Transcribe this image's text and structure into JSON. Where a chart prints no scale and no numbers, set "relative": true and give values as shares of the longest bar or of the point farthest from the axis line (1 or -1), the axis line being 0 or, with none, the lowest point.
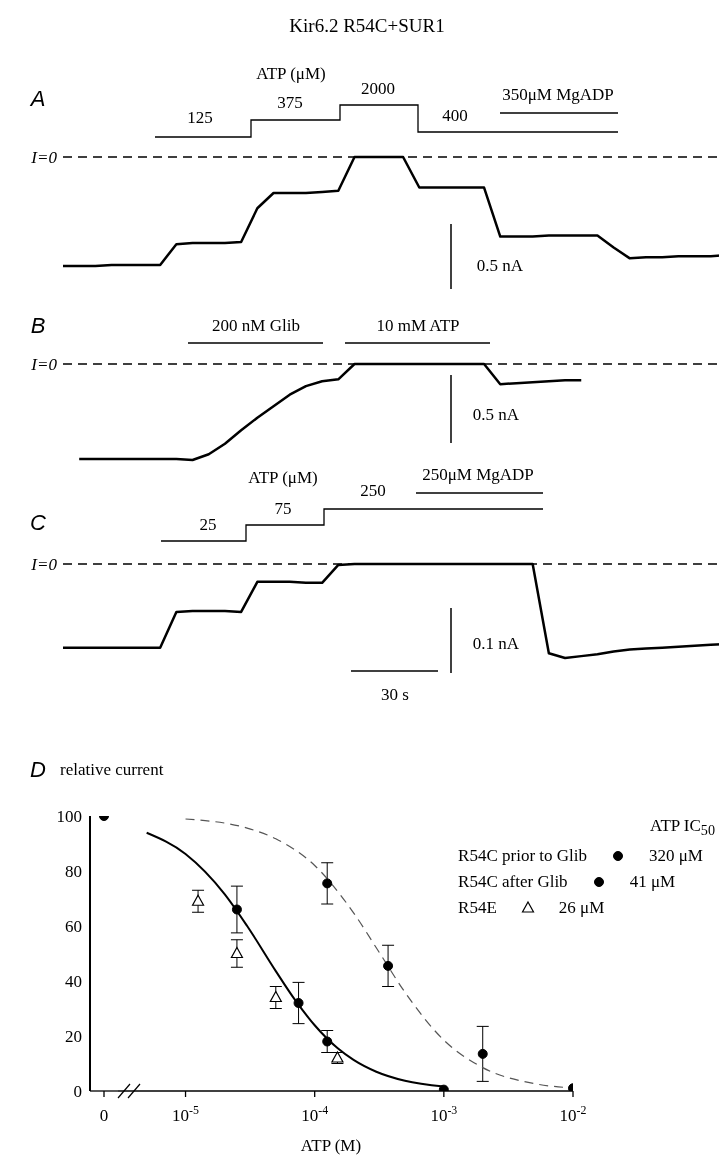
{
  "chart_data": [
    {
      "type": "line",
      "title": "Kir6.2 R54C+SUR1",
      "subtitle": "A",
      "relative": true,
      "color": "#000000",
      "categories": [
        null,
        null,
        null,
        null,
        null,
        null,
        null,
        null,
        null,
        null,
        null,
        null,
        null,
        null,
        null,
        null,
        null,
        null,
        null,
        null,
        null,
        null,
        null,
        null,
        null,
        null,
        null,
        null,
        null,
        null,
        null,
        null,
        null,
        null,
        null,
        null,
        null,
        null,
        null,
        null,
        null,
        null
      ],
      "values": [
        -1,
        -1,
        -1,
        -0.99,
        -0.99,
        -0.99,
        -0.99,
        -0.8,
        -0.79,
        -0.79,
        -0.79,
        -0.78,
        -0.47,
        -0.33,
        -0.33,
        -0.33,
        -0.32,
        -0.31,
        0,
        0,
        0,
        0,
        -0.28,
        -0.28,
        -0.28,
        -0.28,
        -0.28,
        -0.73,
        -0.73,
        -0.73,
        -0.72,
        -0.72,
        -0.72,
        -0.72,
        -0.83,
        -0.93,
        -0.92,
        -0.92,
        -0.91,
        -0.91,
        -0.91,
        -0.9
      ],
      "ref_lines": [
        {
          "axis": "y",
          "value": 0,
          "label": "I=0",
          "line_style": "dashed"
        }
      ],
      "annotations": [
        "ATP (μM)",
        "125",
        "375",
        "2000",
        "400",
        "350μM MgADP",
        "0.5 nA"
      ]
    },
    {
      "type": "line",
      "title": "B",
      "relative": true,
      "color": "#000000",
      "categories": [
        null,
        null,
        null,
        null,
        null,
        null,
        null,
        null,
        null,
        null,
        null,
        null,
        null,
        null,
        null,
        null,
        null,
        null,
        null,
        null,
        null,
        null,
        null,
        null,
        null,
        null,
        null,
        null,
        null,
        null,
        null,
        null,
        null,
        null,
        null,
        null,
        null,
        null,
        null,
        null,
        null,
        null
      ],
      "values": [
        null,
        -0.99,
        -0.99,
        -0.99,
        -0.99,
        -0.99,
        -0.99,
        -0.99,
        -1,
        -0.94,
        -0.83,
        -0.69,
        -0.56,
        -0.44,
        -0.32,
        -0.23,
        -0.18,
        -0.16,
        0,
        0,
        0,
        0,
        0,
        0,
        0,
        0,
        0,
        -0.21,
        -0.2,
        -0.19,
        -0.18,
        -0.17,
        -0.17,
        null,
        null,
        null,
        null,
        null,
        null,
        null,
        null,
        null
      ],
      "ref_lines": [
        {
          "axis": "y",
          "value": 0,
          "label": "I=0",
          "line_style": "dashed"
        }
      ],
      "annotations": [
        "200 nM Glib",
        "10 mM ATP",
        "0.5 nA"
      ]
    },
    {
      "type": "line",
      "title": "C",
      "relative": true,
      "color": "#000000",
      "categories": [
        null,
        null,
        null,
        null,
        null,
        null,
        null,
        null,
        null,
        null,
        null,
        null,
        null,
        null,
        null,
        null,
        null,
        null,
        null,
        null,
        null,
        null,
        null,
        null,
        null,
        null,
        null,
        null,
        null,
        null,
        null,
        null,
        null,
        null,
        null,
        null,
        null,
        null,
        null,
        null,
        null,
        null
      ],
      "values": [
        -0.89,
        -0.89,
        -0.89,
        -0.89,
        -0.89,
        -0.89,
        -0.89,
        -0.51,
        -0.5,
        -0.5,
        -0.5,
        -0.51,
        -0.19,
        -0.19,
        -0.19,
        -0.2,
        -0.2,
        -0.01,
        0,
        0,
        0,
        0,
        0,
        0,
        0,
        0,
        0,
        0,
        0,
        0,
        -0.95,
        -1,
        -0.98,
        -0.96,
        -0.93,
        -0.91,
        -0.9,
        -0.89,
        -0.88,
        -0.87,
        -0.86,
        -0.85
      ],
      "ref_lines": [
        {
          "axis": "y",
          "value": 0,
          "label": "I=0",
          "line_style": "dashed"
        }
      ],
      "annotations": [
        "ATP (μM)",
        "25",
        "75",
        "250",
        "250μM MgADP",
        "0.1 nA",
        "30 s"
      ]
    },
    {
      "type": "scatter",
      "title": "D",
      "ylabel": "relative current",
      "categories": [
        "0"
      ],
      "ylim": [
        0,
        100
      ],
      "yticks": [
        0,
        20,
        40,
        60,
        80,
        100
      ],
      "series": [
        {
          "type": "scatter",
          "color": "#000000",
          "marker": "circle",
          "values": [
            100
          ]
        }
      ]
    },
    {
      "type": "scatter",
      "xlabel": "ATP (M)",
      "legend_title": "ATP IC$_{50}$",
      "log": "x",
      "legend": "top right",
      "tick_labels": "x",
      "xlim": [
        3e-06,
        0.01
      ],
      "xticks": [
        {
          "value": 1e-05,
          "label": "10$^{-5}$"
        },
        {
          "value": 0.0001,
          "label": "10$^{-4}$"
        },
        {
          "value": 0.001,
          "label": "10$^{-3}$"
        },
        {
          "value": 0.01,
          "label": "10$^{-2}$"
        }
      ],
      "ylim": [
        0,
        100
      ],
      "yticks": [
        0,
        20,
        40,
        60,
        80,
        100
      ],
      "annotations": [
        "320 μM",
        "41 μM",
        "26 μM"
      ],
      "series": [
        {
          "name": "R54C prior to Glib",
          "type": "scatter",
          "color": "#000000",
          "marker": "circle",
          "x": [
            0.000125,
            0.00037,
            0.002,
            0.01
          ],
          "values": [
            75.5,
            45.5,
            13.5,
            1
          ],
          "errors": [
            7.5,
            7.5,
            10,
            null
          ]
        },
        {
          "name": "R54C after Glib",
          "type": "scatter",
          "color": "#000000",
          "marker": "circle",
          "x": [
            2.5e-05,
            7.5e-05,
            0.000125,
            0.001
          ],
          "values": [
            66,
            32,
            18,
            0.5
          ],
          "errors": [
            8.5,
            7.5,
            4,
            null
          ]
        },
        {
          "name": "R54E",
          "type": "scatter",
          "color": "#000000",
          "marker": "triangle",
          "x": [
            1.25e-05,
            2.5e-05,
            5e-05,
            0.00015
          ],
          "values": [
            69,
            50,
            34,
            12
          ],
          "errors": [
            4,
            5,
            4,
            2
          ]
        },
        {
          "type": "line",
          "color": "#555555",
          "line_style": "dashed",
          "marker": "none",
          "x": [
            1e-05,
            3e-05,
            5e-05,
            0.0001,
            0.0002,
            0.00032,
            0.0005,
            0.001,
            0.002,
            0.005,
            0.01
          ],
          "values": [
            98.9,
            95.6,
            91.7,
            82,
            64.8,
            50,
            35.9,
            18.5,
            8.5,
            2.7,
            1.1
          ]
        },
        {
          "type": "line",
          "color": "#000000",
          "line_style": "solid",
          "marker": "none",
          "x": [
            5e-06,
            1e-05,
            2e-05,
            3e-05,
            5e-05,
            7e-05,
            0.0001,
            0.00015,
            0.0002,
            0.0003,
            0.0005,
            0.001
          ],
          "values": [
            93.9,
            86.2,
            71.7,
            60,
            43.6,
            33.3,
            23.9,
            15.6,
            11.3,
            7,
            3.7,
            1.6
          ]
        }
      ]
    }
  ]
}
